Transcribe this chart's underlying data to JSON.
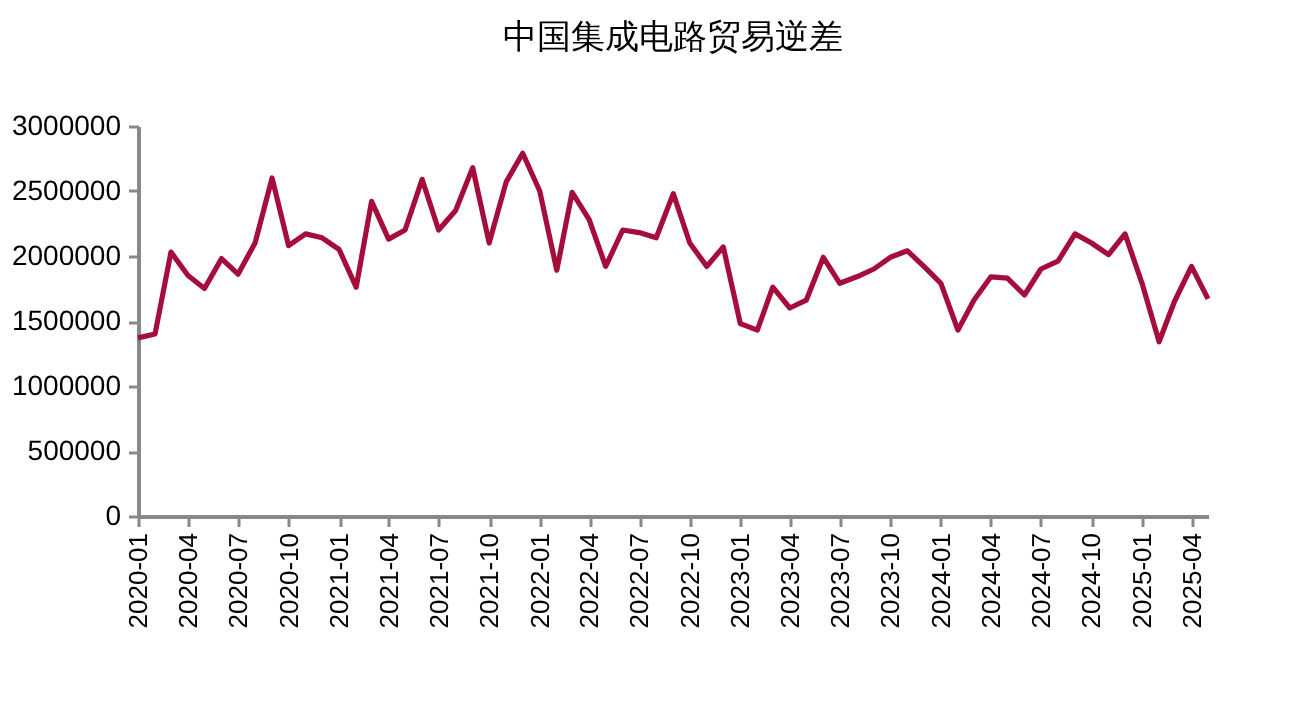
{
  "chart_data": {
    "type": "line",
    "title": "中国集成电路贸易逆差",
    "x": [
      "2020-01",
      "2020-02",
      "2020-03",
      "2020-04",
      "2020-05",
      "2020-06",
      "2020-07",
      "2020-08",
      "2020-09",
      "2020-10",
      "2020-11",
      "2020-12",
      "2021-01",
      "2021-02",
      "2021-03",
      "2021-04",
      "2021-05",
      "2021-06",
      "2021-07",
      "2021-08",
      "2021-09",
      "2021-10",
      "2021-11",
      "2021-12",
      "2022-01",
      "2022-02",
      "2022-03",
      "2022-04",
      "2022-05",
      "2022-06",
      "2022-07",
      "2022-08",
      "2022-09",
      "2022-10",
      "2022-11",
      "2022-12",
      "2023-01",
      "2023-02",
      "2023-03",
      "2023-04",
      "2023-05",
      "2023-06",
      "2023-07",
      "2023-08",
      "2023-09",
      "2023-10",
      "2023-11",
      "2023-12",
      "2024-01",
      "2024-02",
      "2024-03",
      "2024-04",
      "2024-05",
      "2024-06",
      "2024-07",
      "2024-08",
      "2024-09",
      "2024-10",
      "2024-11",
      "2024-12",
      "2025-01",
      "2025-02",
      "2025-03",
      "2025-04",
      "2025-05"
    ],
    "series": [
      {
        "color": "#a50d3a",
        "values": [
          1370000,
          1400000,
          2030000,
          1850000,
          1750000,
          1980000,
          1860000,
          2100000,
          2600000,
          2080000,
          2170000,
          2140000,
          2050000,
          1760000,
          2420000,
          2130000,
          2200000,
          2590000,
          2200000,
          2350000,
          2680000,
          2100000,
          2570000,
          2790000,
          2500000,
          1890000,
          2490000,
          2280000,
          1920000,
          2200000,
          2180000,
          2140000,
          2480000,
          2100000,
          1920000,
          2070000,
          1480000,
          1430000,
          1760000,
          1600000,
          1660000,
          1990000,
          1790000,
          1840000,
          1900000,
          1990000,
          2040000,
          1920000,
          1790000,
          1430000,
          1660000,
          1840000,
          1830000,
          1700000,
          1900000,
          1960000,
          2170000,
          2100000,
          2010000,
          2170000,
          1790000,
          1340000,
          1650000,
          1920000,
          1670000
        ]
      }
    ],
    "xlim": [
      "2020-01",
      "2025-05"
    ],
    "xticks": [
      "2020-01",
      "2020-04",
      "2020-07",
      "2020-10",
      "2021-01",
      "2021-04",
      "2021-07",
      "2021-10",
      "2022-01",
      "2022-04",
      "2022-07",
      "2022-10",
      "2023-01",
      "2023-04",
      "2023-07",
      "2023-10",
      "2024-01",
      "2024-04",
      "2024-07",
      "2024-10",
      "2025-01",
      "2025-04"
    ],
    "ylim": [
      0,
      3000000
    ],
    "yticks": [
      0,
      500000,
      1000000,
      1500000,
      2000000,
      2500000,
      3000000
    ],
    "grid": false,
    "marker": "none",
    "line_style": "solid"
  }
}
